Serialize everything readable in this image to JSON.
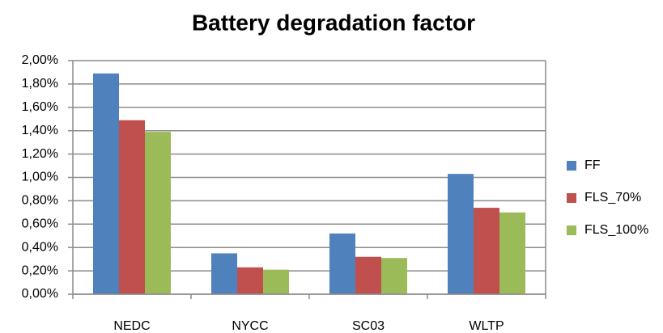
{
  "chart_data": {
    "type": "bar",
    "title": "Battery degradation factor",
    "categories": [
      "NEDC",
      "NYCC",
      "SC03",
      "WLTP"
    ],
    "series": [
      {
        "name": "FF",
        "color": "#4f81bd",
        "values": [
          1.89,
          0.35,
          0.52,
          1.03
        ]
      },
      {
        "name": "FLS_70%",
        "color": "#c0504d",
        "values": [
          1.49,
          0.23,
          0.32,
          0.74
        ]
      },
      {
        "name": "FLS_100%",
        "color": "#9bbb59",
        "values": [
          1.39,
          0.21,
          0.31,
          0.7
        ]
      }
    ],
    "ylim": [
      0,
      2
    ],
    "yticks": [
      {
        "value": 0,
        "label": "0,00%"
      },
      {
        "value": 0.2,
        "label": "0,20%"
      },
      {
        "value": 0.4,
        "label": "0,40%"
      },
      {
        "value": 0.6,
        "label": "0,60%"
      },
      {
        "value": 0.8,
        "label": "0,80%"
      },
      {
        "value": 1.0,
        "label": "1,00%"
      },
      {
        "value": 1.2,
        "label": "1,20%"
      },
      {
        "value": 1.4,
        "label": "1,40%"
      },
      {
        "value": 1.6,
        "label": "1,60%"
      },
      {
        "value": 1.8,
        "label": "1,80%"
      },
      {
        "value": 2.0,
        "label": "2,00%"
      }
    ],
    "grid": true,
    "legend": "right"
  }
}
